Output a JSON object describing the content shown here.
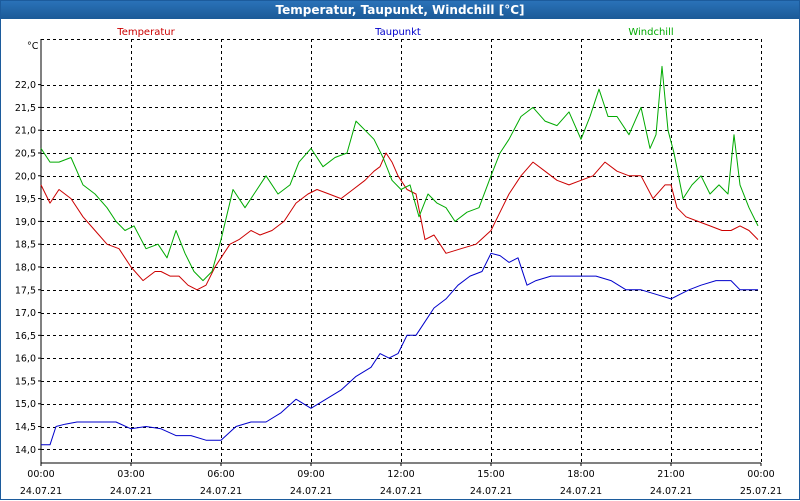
{
  "window": {
    "title": "Temperatur, Taupunkt, Windchill [°C]"
  },
  "chart_data": {
    "type": "line",
    "title": "Temperatur, Taupunkt, Windchill [°C]",
    "ylabel": "°C",
    "xlabel": "",
    "ylim": [
      13.7,
      23.0
    ],
    "xlim": [
      0,
      24
    ],
    "grid": true,
    "y_ticks": [
      "14,0",
      "14,5",
      "15,0",
      "15,5",
      "16,0",
      "16,5",
      "17,0",
      "17,5",
      "18,0",
      "18,5",
      "19,0",
      "19,5",
      "20,0",
      "20,5",
      "21,0",
      "21,5",
      "22,0"
    ],
    "y_tick_values": [
      14.0,
      14.5,
      15.0,
      15.5,
      16.0,
      16.5,
      17.0,
      17.5,
      18.0,
      18.5,
      19.0,
      19.5,
      20.0,
      20.5,
      21.0,
      21.5,
      22.0
    ],
    "x_tick_values": [
      0,
      3,
      6,
      9,
      12,
      15,
      18,
      21,
      24
    ],
    "x_tick_times": [
      "00:00",
      "03:00",
      "06:00",
      "09:00",
      "12:00",
      "15:00",
      "18:00",
      "21:00",
      "00:00"
    ],
    "x_tick_dates": [
      "24.07.21",
      "24.07.21",
      "24.07.21",
      "24.07.21",
      "24.07.21",
      "24.07.21",
      "24.07.21",
      "24.07.21",
      "25.07.21"
    ],
    "series": [
      {
        "name": "Temperatur",
        "color": "#cc0000",
        "x": [
          0,
          0.3,
          0.6,
          1.0,
          1.4,
          1.8,
          2.2,
          2.6,
          3.0,
          3.4,
          3.8,
          4.0,
          4.3,
          4.6,
          4.9,
          5.2,
          5.5,
          5.8,
          6.0,
          6.3,
          6.6,
          7.0,
          7.3,
          7.7,
          8.1,
          8.5,
          8.9,
          9.2,
          9.6,
          10.0,
          10.4,
          10.8,
          11.1,
          11.3,
          11.5,
          11.7,
          11.9,
          12.2,
          12.5,
          12.8,
          13.1,
          13.5,
          14.0,
          14.5,
          15.0,
          15.3,
          15.6,
          16.0,
          16.4,
          16.8,
          17.2,
          17.6,
          18.0,
          18.4,
          18.8,
          19.2,
          19.6,
          20.0,
          20.4,
          20.8,
          21.0,
          21.2,
          21.5,
          21.9,
          22.3,
          22.7,
          23.0,
          23.3,
          23.6,
          23.9
        ],
        "values": [
          19.8,
          19.4,
          19.7,
          19.5,
          19.1,
          18.8,
          18.5,
          18.4,
          18.0,
          17.7,
          17.9,
          17.9,
          17.8,
          17.8,
          17.6,
          17.5,
          17.6,
          18.0,
          18.2,
          18.5,
          18.6,
          18.8,
          18.7,
          18.8,
          19.0,
          19.4,
          19.6,
          19.7,
          19.6,
          19.5,
          19.7,
          19.9,
          20.1,
          20.2,
          20.5,
          20.3,
          20.0,
          19.7,
          19.6,
          18.6,
          18.7,
          18.3,
          18.4,
          18.5,
          18.8,
          19.2,
          19.6,
          20.0,
          20.3,
          20.1,
          19.9,
          19.8,
          19.9,
          20.0,
          20.3,
          20.1,
          20.0,
          20.0,
          19.5,
          19.8,
          19.8,
          19.3,
          19.1,
          19.0,
          18.9,
          18.8,
          18.8,
          18.9,
          18.8,
          18.6
        ]
      },
      {
        "name": "Taupunkt",
        "color": "#0000cc",
        "x": [
          0,
          0.3,
          0.5,
          0.8,
          1.2,
          1.6,
          2.0,
          2.5,
          3.0,
          3.5,
          4.0,
          4.5,
          5.0,
          5.5,
          6.0,
          6.5,
          7.0,
          7.5,
          8.0,
          8.5,
          9.0,
          9.5,
          10.0,
          10.5,
          11.0,
          11.3,
          11.6,
          11.9,
          12.2,
          12.5,
          12.8,
          13.1,
          13.5,
          13.9,
          14.3,
          14.7,
          15.0,
          15.3,
          15.6,
          15.9,
          16.2,
          16.5,
          17.0,
          17.5,
          18.0,
          18.5,
          19.0,
          19.5,
          20.0,
          20.5,
          21.0,
          21.3,
          21.6,
          22.0,
          22.5,
          23.0,
          23.3,
          23.6,
          23.9
        ],
        "values": [
          14.1,
          14.1,
          14.5,
          14.55,
          14.6,
          14.6,
          14.6,
          14.6,
          14.45,
          14.5,
          14.45,
          14.3,
          14.3,
          14.2,
          14.2,
          14.5,
          14.6,
          14.6,
          14.8,
          15.1,
          14.9,
          15.1,
          15.3,
          15.6,
          15.8,
          16.1,
          16.0,
          16.1,
          16.5,
          16.5,
          16.8,
          17.1,
          17.3,
          17.6,
          17.8,
          17.9,
          18.3,
          18.25,
          18.1,
          18.2,
          17.6,
          17.7,
          17.8,
          17.8,
          17.8,
          17.8,
          17.7,
          17.5,
          17.5,
          17.4,
          17.3,
          17.4,
          17.5,
          17.6,
          17.7,
          17.7,
          17.5,
          17.5,
          17.5
        ]
      },
      {
        "name": "Windchill",
        "color": "#00aa00",
        "x": [
          0,
          0.3,
          0.6,
          1.0,
          1.4,
          1.8,
          2.2,
          2.5,
          2.8,
          3.1,
          3.5,
          3.9,
          4.2,
          4.5,
          4.8,
          5.1,
          5.4,
          5.7,
          6.0,
          6.4,
          6.8,
          7.1,
          7.5,
          7.9,
          8.3,
          8.6,
          9.0,
          9.4,
          9.8,
          10.2,
          10.5,
          10.8,
          11.1,
          11.4,
          11.7,
          12.0,
          12.3,
          12.6,
          12.9,
          13.2,
          13.5,
          13.8,
          14.2,
          14.6,
          15.0,
          15.3,
          15.6,
          16.0,
          16.4,
          16.8,
          17.2,
          17.6,
          18.0,
          18.3,
          18.6,
          18.9,
          19.2,
          19.6,
          20.0,
          20.3,
          20.5,
          20.7,
          20.9,
          21.1,
          21.4,
          21.7,
          22.0,
          22.3,
          22.6,
          22.9,
          23.1,
          23.3,
          23.6,
          23.9
        ],
        "values": [
          20.6,
          20.3,
          20.3,
          20.4,
          19.8,
          19.6,
          19.3,
          19.0,
          18.8,
          18.9,
          18.4,
          18.5,
          18.2,
          18.8,
          18.3,
          17.9,
          17.7,
          17.9,
          18.6,
          19.7,
          19.3,
          19.6,
          20.0,
          19.6,
          19.8,
          20.3,
          20.6,
          20.2,
          20.4,
          20.5,
          21.2,
          21.0,
          20.8,
          20.4,
          19.9,
          19.7,
          19.8,
          19.1,
          19.6,
          19.4,
          19.3,
          19.0,
          19.2,
          19.3,
          20.0,
          20.5,
          20.8,
          21.3,
          21.5,
          21.2,
          21.1,
          21.4,
          20.8,
          21.3,
          21.9,
          21.3,
          21.3,
          20.9,
          21.5,
          20.6,
          20.9,
          22.4,
          21.0,
          20.5,
          19.5,
          19.8,
          20.0,
          19.6,
          19.8,
          19.6,
          20.9,
          19.8,
          19.3,
          18.9
        ]
      }
    ]
  }
}
